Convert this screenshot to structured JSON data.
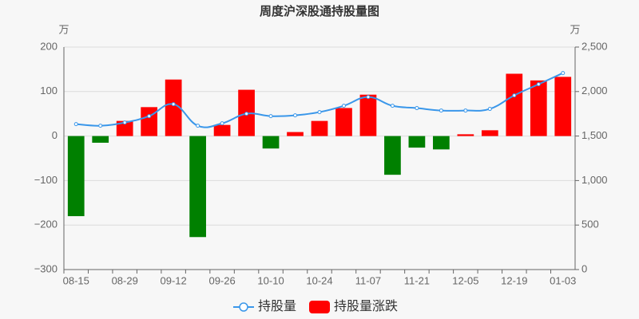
{
  "chart_data": {
    "type": "bar-line",
    "title": "周度沪深股通持股量图",
    "y_unit": "万",
    "y2_unit": "万",
    "categories": [
      "08-15",
      null,
      "08-29",
      null,
      "09-12",
      null,
      "09-26",
      null,
      "10-10",
      null,
      "10-24",
      null,
      "11-07",
      null,
      "11-21",
      null,
      "12-05",
      null,
      "12-19",
      null,
      "01-03"
    ],
    "series": [
      {
        "name": "持股量",
        "type": "line",
        "axis": "y2",
        "color": "#3a97ea",
        "values": [
          1634,
          1616,
          1652,
          1724,
          1858,
          1616,
          1643,
          1751,
          1724,
          1733,
          1769,
          1840,
          1939,
          1840,
          1814,
          1787,
          1787,
          1805,
          1957,
          2082,
          2208
        ]
      },
      {
        "name": "持股量涨跌",
        "type": "bar",
        "color": "#ff0000",
        "negative_color": "#008000",
        "values": [
          -180,
          -15,
          34,
          65,
          127,
          -227,
          25,
          104,
          -28,
          9,
          34,
          63,
          93,
          -87,
          -26,
          -30,
          4,
          13,
          140,
          125,
          133
        ]
      }
    ],
    "ylim": [
      -300,
      200
    ],
    "yticks": [
      {
        "value": -300,
        "label": "−300"
      },
      {
        "value": -200,
        "label": "−200"
      },
      {
        "value": -100,
        "label": "−100"
      },
      0,
      100,
      200
    ],
    "y2lim": [
      0,
      2500
    ],
    "y2ticks": [
      0,
      500,
      {
        "value": 1000,
        "label": "1,000"
      },
      {
        "value": 1500,
        "label": "1,500"
      },
      {
        "value": 2000,
        "label": "2,000"
      },
      {
        "value": 2500,
        "label": "2,500"
      }
    ],
    "grid": true,
    "legend": "bottom"
  }
}
